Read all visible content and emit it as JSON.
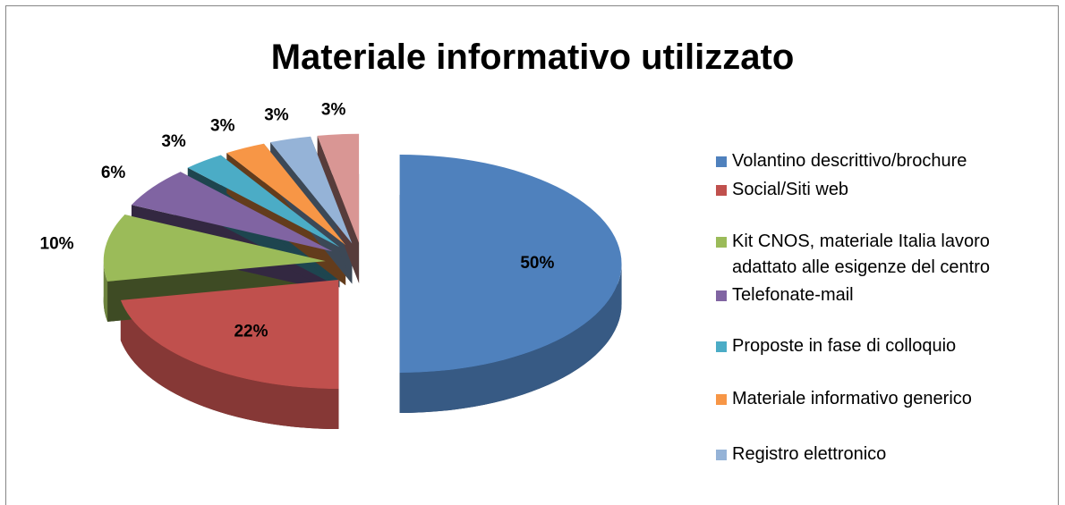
{
  "chart_data": {
    "type": "pie",
    "title": "Materiale informativo utilizzato",
    "categories": [
      "Volantino descrittivo/brochure",
      "Social/Siti web",
      "Kit CNOS, materiale Italia lavoro adattato alle esigenze del centro",
      "Telefonate-mail",
      "Proposte in fase di colloquio",
      "Materiale informativo generico",
      "Registro elettronico",
      null
    ],
    "values": [
      50,
      22,
      10,
      6,
      3,
      3,
      3,
      3
    ],
    "value_labels": [
      "50%",
      "22%",
      "10%",
      "6%",
      "3%",
      "3%",
      "3%",
      "3%"
    ],
    "colors": [
      "#4f81bd",
      "#c0504d",
      "#9bbb59",
      "#8064a2",
      "#4bacc6",
      "#f79646",
      "#95b3d7",
      "#d99694"
    ],
    "legend": "right"
  }
}
